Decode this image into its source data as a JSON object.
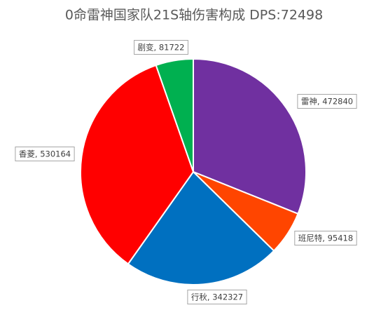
{
  "chart_data": {
    "type": "pie",
    "title": "0命雷神国家队21S轴伤害构成 DPS:72498",
    "values": [
      472840,
      95418,
      342327,
      530164,
      81722
    ],
    "value_labels": [
      "雷神, 472840",
      "班尼特, 95418",
      "行秋, 342327",
      "香菱, 530164",
      "剧变, 81722"
    ],
    "colors": [
      "#7030a0",
      "#ff4500",
      "#0070c0",
      "#ff0000",
      "#00b050"
    ],
    "start_angle": 90,
    "direction": "clockwise"
  }
}
